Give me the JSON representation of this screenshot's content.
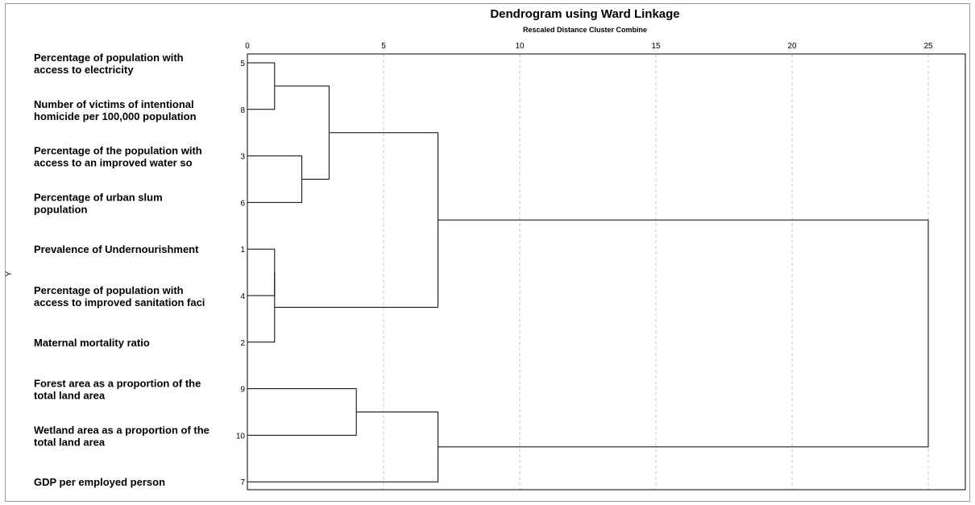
{
  "chart_data": {
    "type": "dendrogram",
    "title": "Dendrogram using Ward Linkage",
    "subtitle": "Rescaled Distance Cluster Combine",
    "ylabel": "Y",
    "xlim": [
      0,
      26
    ],
    "xticks": [
      0,
      5,
      10,
      15,
      20,
      25
    ],
    "grid": true,
    "leaves": [
      {
        "id": "5",
        "label": [
          "Percentage of population with",
          "access to electricity"
        ]
      },
      {
        "id": "8",
        "label": [
          "Number of victims of intentional",
          "homicide per 100,000 population"
        ]
      },
      {
        "id": "3",
        "label": [
          "Percentage of the population with",
          "access to an improved water so"
        ]
      },
      {
        "id": "6",
        "label": [
          "Percentage of urban slum",
          "population"
        ]
      },
      {
        "id": "1",
        "label": [
          "Prevalence of Undernourishment"
        ]
      },
      {
        "id": "4",
        "label": [
          "Percentage of population with",
          "access to improved sanitation faci"
        ]
      },
      {
        "id": "2",
        "label": [
          "Maternal mortality ratio"
        ]
      },
      {
        "id": "9",
        "label": [
          "Forest area as a proportion of the",
          "total land area"
        ]
      },
      {
        "id": "10",
        "label": [
          "Wetland area as a proportion of the",
          "total land area"
        ]
      },
      {
        "id": "7",
        "label": [
          "GDP per employed person"
        ]
      }
    ],
    "merges": [
      {
        "id": "A",
        "left": "5",
        "right": "8",
        "distance": 1
      },
      {
        "id": "B",
        "left": "1",
        "right": "4",
        "distance": 1
      },
      {
        "id": "C",
        "left": "B",
        "right": "2",
        "distance": 1
      },
      {
        "id": "D",
        "left": "3",
        "right": "6",
        "distance": 2
      },
      {
        "id": "E",
        "left": "A",
        "right": "D",
        "distance": 3
      },
      {
        "id": "F",
        "left": "9",
        "right": "10",
        "distance": 4
      },
      {
        "id": "G",
        "left": "E",
        "right": "C",
        "distance": 7
      },
      {
        "id": "H",
        "left": "F",
        "right": "7",
        "distance": 7
      },
      {
        "id": "I",
        "left": "G",
        "right": "H",
        "distance": 25
      }
    ]
  },
  "colors": {
    "line": "#000000",
    "grid": "#c8c8c8",
    "frame": "#9a9a9a"
  }
}
